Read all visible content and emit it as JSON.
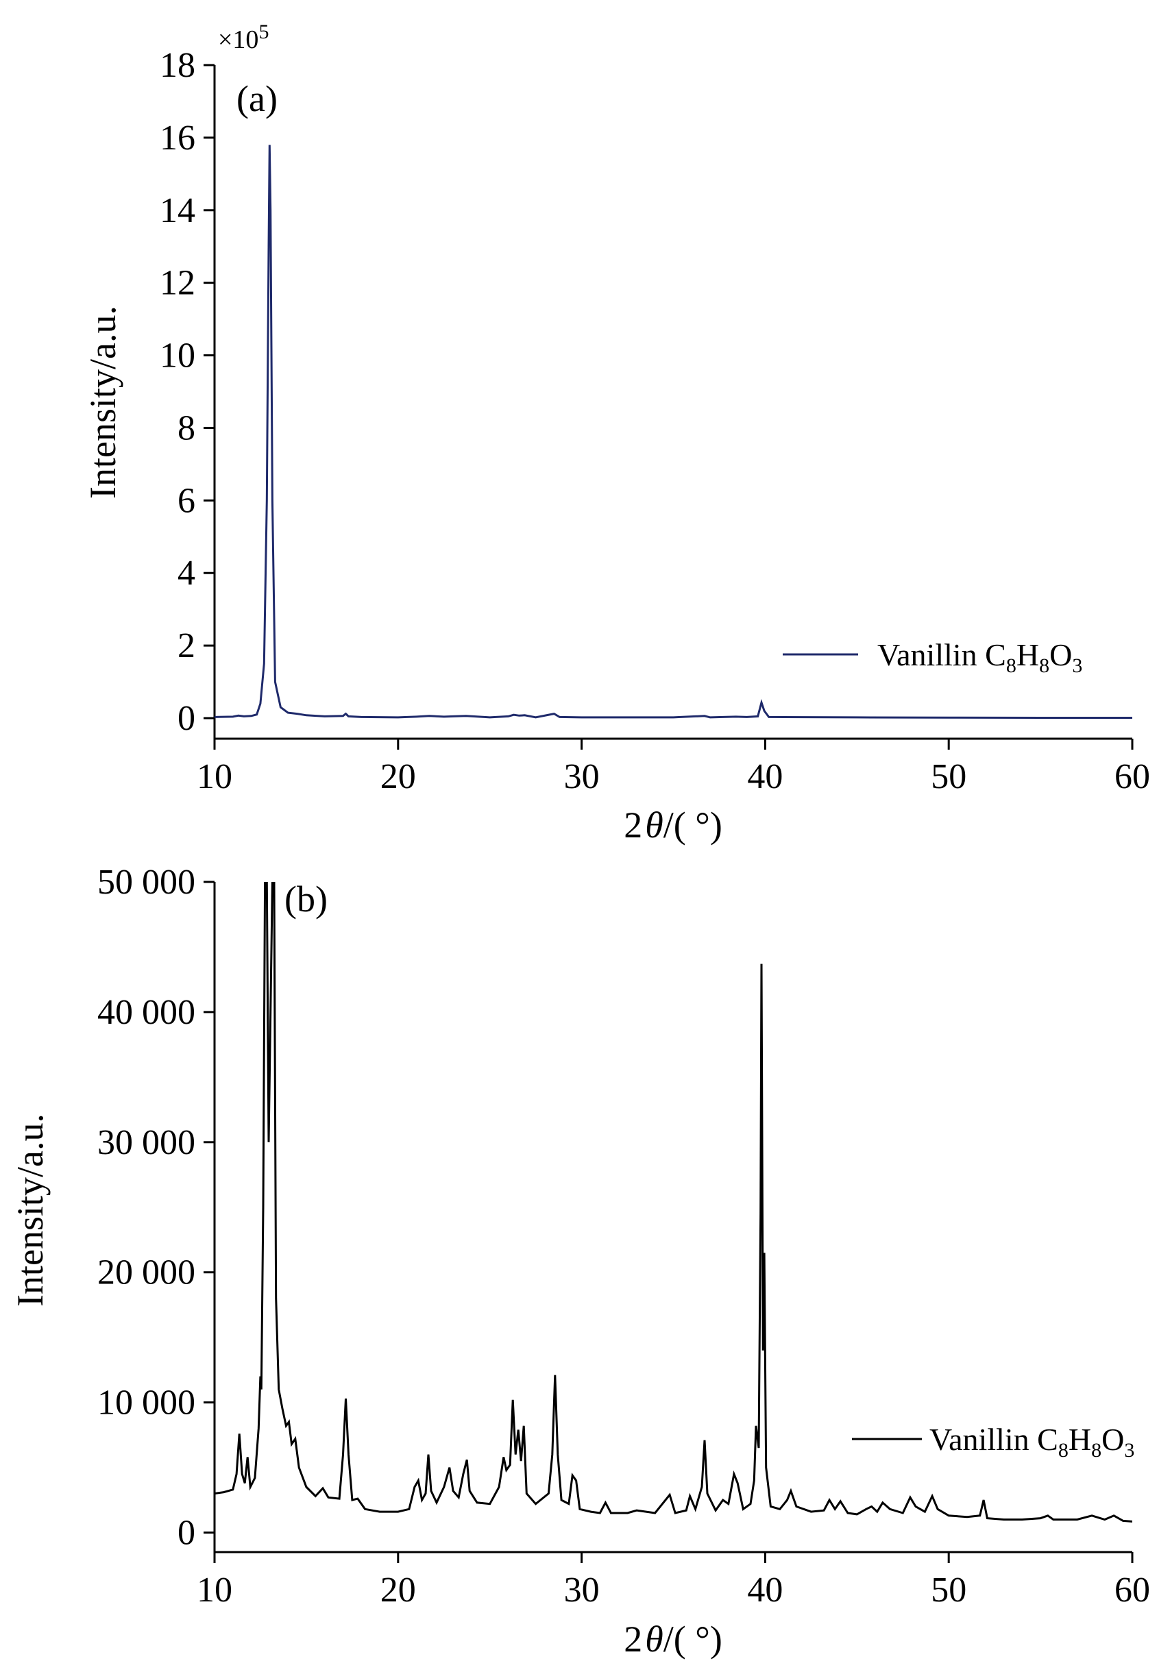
{
  "chart_data": [
    {
      "type": "line",
      "panel_label": "(a)",
      "multiplier_label": "×10",
      "multiplier_exponent": "5",
      "xlabel_prefix": "2",
      "xlabel_symbol": "θ",
      "xlabel_suffix": "/( °)",
      "ylabel": "Intensity/a.u.",
      "xlim": [
        10,
        60
      ],
      "ylim": [
        0,
        18
      ],
      "xticks": [
        10,
        20,
        30,
        40,
        50,
        60
      ],
      "yticks": [
        0,
        2,
        4,
        6,
        8,
        10,
        12,
        14,
        16,
        18
      ],
      "ytick_labels": [
        "0",
        "2",
        "4",
        "6",
        "8",
        "10",
        "12",
        "14",
        "16",
        "18"
      ],
      "legend_position": "lower-right",
      "grid": false,
      "series": [
        {
          "name": "Vanillin C8H8O3",
          "legend_text": "Vanillin C",
          "legend_sub1": "8",
          "legend_mid": "H",
          "legend_sub2": "8",
          "legend_mid2": "O",
          "legend_sub3": "3",
          "color": "#1f2a6b",
          "points": [
            [
              10,
              0.03
            ],
            [
              11,
              0.04
            ],
            [
              11.3,
              0.07
            ],
            [
              11.6,
              0.05
            ],
            [
              12,
              0.06
            ],
            [
              12.3,
              0.1
            ],
            [
              12.5,
              0.4
            ],
            [
              12.7,
              1.5
            ],
            [
              12.85,
              6.0
            ],
            [
              12.95,
              13.0
            ],
            [
              13.0,
              15.8
            ],
            [
              13.05,
              14.0
            ],
            [
              13.15,
              6.0
            ],
            [
              13.3,
              1.0
            ],
            [
              13.6,
              0.3
            ],
            [
              14.0,
              0.15
            ],
            [
              14.5,
              0.12
            ],
            [
              15,
              0.08
            ],
            [
              16,
              0.05
            ],
            [
              17.0,
              0.06
            ],
            [
              17.15,
              0.12
            ],
            [
              17.3,
              0.05
            ],
            [
              18,
              0.03
            ],
            [
              20,
              0.02
            ],
            [
              21,
              0.04
            ],
            [
              21.7,
              0.06
            ],
            [
              22.5,
              0.04
            ],
            [
              23,
              0.05
            ],
            [
              23.7,
              0.06
            ],
            [
              25,
              0.02
            ],
            [
              26,
              0.05
            ],
            [
              26.3,
              0.09
            ],
            [
              26.6,
              0.07
            ],
            [
              26.9,
              0.08
            ],
            [
              27.5,
              0.02
            ],
            [
              28.5,
              0.12
            ],
            [
              28.8,
              0.03
            ],
            [
              30,
              0.02
            ],
            [
              35,
              0.02
            ],
            [
              36.7,
              0.06
            ],
            [
              37,
              0.02
            ],
            [
              38.4,
              0.04
            ],
            [
              39,
              0.03
            ],
            [
              39.6,
              0.05
            ],
            [
              39.8,
              0.43
            ],
            [
              39.95,
              0.2
            ],
            [
              40.2,
              0.03
            ],
            [
              45,
              0.02
            ],
            [
              50,
              0.015
            ],
            [
              55,
              0.01
            ],
            [
              60,
              0.01
            ]
          ]
        }
      ]
    },
    {
      "type": "line",
      "panel_label": "(b)",
      "xlabel_prefix": "2",
      "xlabel_symbol": "θ",
      "xlabel_suffix": "/( °)",
      "ylabel": "Intensity/a.u.",
      "xlim": [
        10,
        60
      ],
      "ylim": [
        -1500,
        50000
      ],
      "xticks": [
        10,
        20,
        30,
        40,
        50,
        60
      ],
      "yticks": [
        0,
        10000,
        20000,
        30000,
        40000,
        50000
      ],
      "ytick_labels": [
        "0",
        "10 000",
        "20 000",
        "30 000",
        "40 000",
        "50 000"
      ],
      "legend_position": "right",
      "grid": false,
      "series": [
        {
          "name": "Vanillin C8H8O3",
          "legend_text": "Vanillin C",
          "legend_sub1": "8",
          "legend_mid": "H",
          "legend_sub2": "8",
          "legend_mid2": "O",
          "legend_sub3": "3",
          "color": "#000000",
          "points": [
            [
              10,
              3000
            ],
            [
              10.5,
              3100
            ],
            [
              11,
              3300
            ],
            [
              11.2,
              4500
            ],
            [
              11.35,
              7600
            ],
            [
              11.5,
              4500
            ],
            [
              11.65,
              3800
            ],
            [
              11.8,
              5800
            ],
            [
              11.95,
              3500
            ],
            [
              12.2,
              4200
            ],
            [
              12.4,
              8000
            ],
            [
              12.5,
              12000
            ],
            [
              12.55,
              11000
            ],
            [
              12.65,
              25000
            ],
            [
              12.75,
              50000
            ],
            [
              12.85,
              50000
            ],
            [
              12.95,
              30000
            ],
            [
              13.05,
              40000
            ],
            [
              13.15,
              50000
            ],
            [
              13.25,
              50000
            ],
            [
              13.35,
              18000
            ],
            [
              13.5,
              11000
            ],
            [
              13.7,
              9500
            ],
            [
              13.9,
              8200
            ],
            [
              14.05,
              8500
            ],
            [
              14.2,
              6800
            ],
            [
              14.4,
              7200
            ],
            [
              14.6,
              5000
            ],
            [
              15,
              3500
            ],
            [
              15.5,
              2800
            ],
            [
              15.9,
              3400
            ],
            [
              16.2,
              2700
            ],
            [
              16.8,
              2600
            ],
            [
              17.0,
              6000
            ],
            [
              17.15,
              10300
            ],
            [
              17.3,
              6000
            ],
            [
              17.5,
              2500
            ],
            [
              17.8,
              2600
            ],
            [
              18.2,
              1800
            ],
            [
              19,
              1600
            ],
            [
              20,
              1600
            ],
            [
              20.6,
              1800
            ],
            [
              20.9,
              3500
            ],
            [
              21.1,
              4000
            ],
            [
              21.3,
              2500
            ],
            [
              21.5,
              3000
            ],
            [
              21.65,
              6000
            ],
            [
              21.8,
              3200
            ],
            [
              22.1,
              2300
            ],
            [
              22.5,
              3500
            ],
            [
              22.8,
              5000
            ],
            [
              23.0,
              3200
            ],
            [
              23.3,
              2700
            ],
            [
              23.55,
              4500
            ],
            [
              23.75,
              5600
            ],
            [
              23.9,
              3200
            ],
            [
              24.3,
              2300
            ],
            [
              25.0,
              2200
            ],
            [
              25.5,
              3500
            ],
            [
              25.75,
              5800
            ],
            [
              25.9,
              4800
            ],
            [
              26.1,
              5200
            ],
            [
              26.25,
              10200
            ],
            [
              26.4,
              6000
            ],
            [
              26.55,
              7900
            ],
            [
              26.7,
              5500
            ],
            [
              26.85,
              8200
            ],
            [
              27.0,
              3000
            ],
            [
              27.5,
              2200
            ],
            [
              28.2,
              3000
            ],
            [
              28.4,
              6000
            ],
            [
              28.55,
              12100
            ],
            [
              28.7,
              6000
            ],
            [
              28.9,
              2500
            ],
            [
              29.3,
              2200
            ],
            [
              29.5,
              4400
            ],
            [
              29.7,
              4000
            ],
            [
              29.9,
              1800
            ],
            [
              30.5,
              1600
            ],
            [
              31.0,
              1500
            ],
            [
              31.3,
              2300
            ],
            [
              31.6,
              1500
            ],
            [
              32.5,
              1500
            ],
            [
              33.0,
              1700
            ],
            [
              34.0,
              1500
            ],
            [
              34.8,
              2900
            ],
            [
              35.1,
              1500
            ],
            [
              35.7,
              1700
            ],
            [
              35.9,
              2800
            ],
            [
              36.2,
              1800
            ],
            [
              36.55,
              3500
            ],
            [
              36.7,
              7100
            ],
            [
              36.85,
              3000
            ],
            [
              37.3,
              1700
            ],
            [
              37.7,
              2500
            ],
            [
              38.0,
              2200
            ],
            [
              38.3,
              4500
            ],
            [
              38.5,
              3800
            ],
            [
              38.8,
              1800
            ],
            [
              39.2,
              2200
            ],
            [
              39.4,
              4000
            ],
            [
              39.5,
              8200
            ],
            [
              39.65,
              6500
            ],
            [
              39.75,
              24500
            ],
            [
              39.8,
              43700
            ],
            [
              39.88,
              14000
            ],
            [
              39.95,
              21500
            ],
            [
              40.05,
              5000
            ],
            [
              40.3,
              2000
            ],
            [
              40.8,
              1800
            ],
            [
              41.2,
              2500
            ],
            [
              41.4,
              3200
            ],
            [
              41.7,
              2000
            ],
            [
              42.5,
              1600
            ],
            [
              43.2,
              1700
            ],
            [
              43.5,
              2500
            ],
            [
              43.8,
              1800
            ],
            [
              44.1,
              2400
            ],
            [
              44.5,
              1500
            ],
            [
              45,
              1400
            ],
            [
              45.5,
              1800
            ],
            [
              45.8,
              2000
            ],
            [
              46.1,
              1600
            ],
            [
              46.4,
              2300
            ],
            [
              46.8,
              1800
            ],
            [
              47.5,
              1500
            ],
            [
              47.9,
              2700
            ],
            [
              48.2,
              2000
            ],
            [
              48.7,
              1600
            ],
            [
              49.1,
              2800
            ],
            [
              49.4,
              1800
            ],
            [
              50,
              1300
            ],
            [
              51,
              1200
            ],
            [
              51.7,
              1300
            ],
            [
              51.9,
              2500
            ],
            [
              52.1,
              1100
            ],
            [
              53,
              1000
            ],
            [
              54,
              1000
            ],
            [
              55,
              1100
            ],
            [
              55.4,
              1300
            ],
            [
              55.7,
              1000
            ],
            [
              57,
              1000
            ],
            [
              57.8,
              1300
            ],
            [
              58.5,
              1000
            ],
            [
              59,
              1300
            ],
            [
              59.5,
              900
            ],
            [
              60,
              850
            ]
          ]
        }
      ]
    }
  ]
}
